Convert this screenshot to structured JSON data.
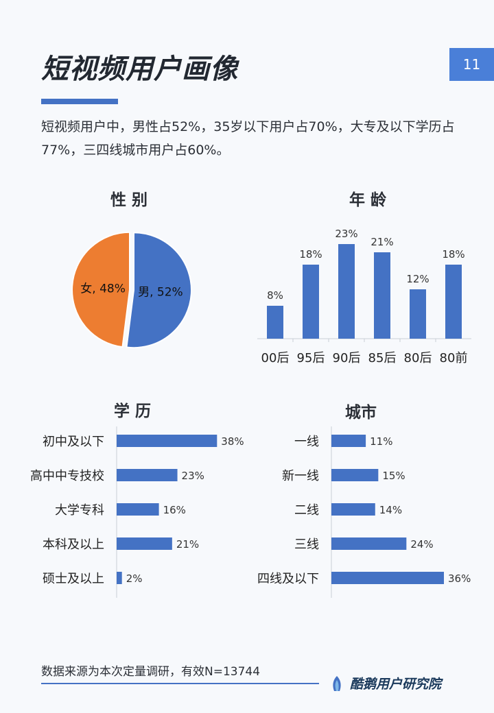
{
  "page": {
    "title": "短视频用户画像",
    "page_number": "11",
    "intro": "短视频用户中，男性占52%，35岁以下用户占70%，大专及以下学历占77%，三四线城市用户占60%。",
    "footer": "数据来源为本次定量调研，有效N=13744",
    "brand": "酷鹅用户研究院"
  },
  "colors": {
    "accent": "#4472c4",
    "orange": "#ed7d31"
  },
  "chart_data": [
    {
      "id": "gender",
      "type": "pie",
      "title": "性 别",
      "labels": [
        "男",
        "女"
      ],
      "values": [
        52,
        48
      ],
      "data_labels": [
        "男, 52%",
        "女, 48%"
      ],
      "colors": [
        "#4472c4",
        "#ed7d31"
      ]
    },
    {
      "id": "age",
      "type": "bar",
      "title": "年 龄",
      "categories": [
        "00后",
        "95后",
        "90后",
        "85后",
        "80后",
        "80前"
      ],
      "values": [
        8,
        18,
        23,
        21,
        12,
        18
      ],
      "data_labels": [
        "8%",
        "18%",
        "23%",
        "21%",
        "12%",
        "18%"
      ],
      "ylim": [
        0,
        25
      ]
    },
    {
      "id": "education",
      "type": "bar",
      "orientation": "horizontal",
      "title": "学 历",
      "categories": [
        "初中及以下",
        "高中中专技校",
        "大学专科",
        "本科及以上",
        "硕士及以上"
      ],
      "values": [
        38,
        23,
        16,
        21,
        2
      ],
      "data_labels": [
        "38%",
        "23%",
        "16%",
        "21%",
        "2%"
      ],
      "xlim": [
        0,
        40
      ]
    },
    {
      "id": "city",
      "type": "bar",
      "orientation": "horizontal",
      "title": "城市",
      "categories": [
        "一线",
        "新一线",
        "二线",
        "三线",
        "四线及以下"
      ],
      "values": [
        11,
        15,
        14,
        24,
        36
      ],
      "data_labels": [
        "11%",
        "15%",
        "14%",
        "24%",
        "36%"
      ],
      "xlim": [
        0,
        36
      ]
    }
  ]
}
